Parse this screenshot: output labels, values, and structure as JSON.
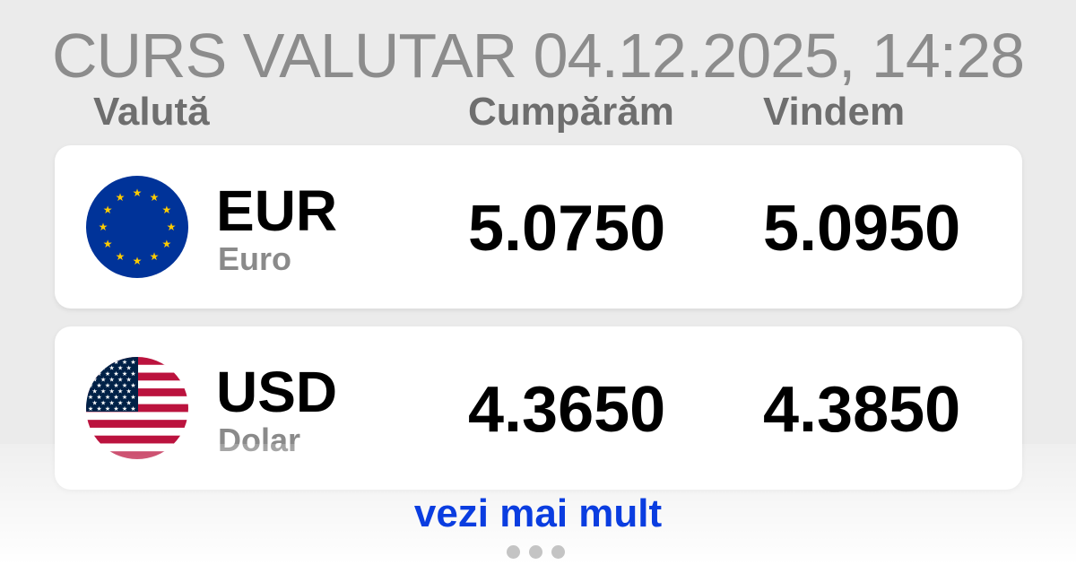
{
  "title": "CURS VALUTAR 04.12.2025, 14:28",
  "headers": {
    "currency": "Valută",
    "buy": "Cumpărăm",
    "sell": "Vindem"
  },
  "rates": [
    {
      "code": "EUR",
      "name": "Euro",
      "buy": "5.0750",
      "sell": "5.0950",
      "flag": "eu-flag-icon"
    },
    {
      "code": "USD",
      "name": "Dolar",
      "buy": "4.3650",
      "sell": "4.3850",
      "flag": "us-flag-icon"
    }
  ],
  "more_link": "vezi mai mult",
  "colors": {
    "link": "#0a3de0",
    "eu_blue": "#003399",
    "eu_star": "#ffcc00",
    "us_red": "#bb133e",
    "us_blue": "#002147"
  }
}
